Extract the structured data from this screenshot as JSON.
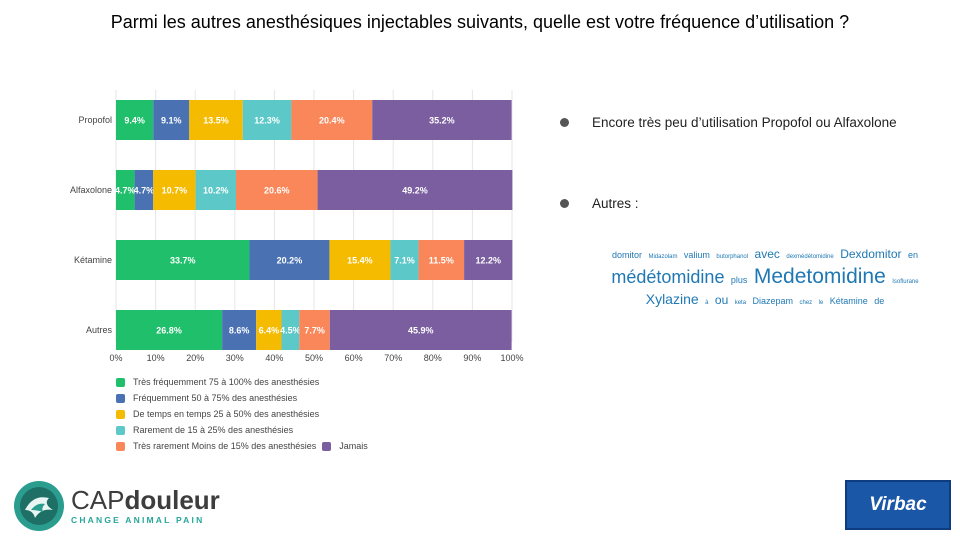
{
  "title": "Parmi les autres anesthésiques injectables suivants, quelle est votre fréquence d’utilisation ?",
  "chart_data": {
    "type": "bar",
    "orientation": "horizontal-stacked-100",
    "categories": [
      "Propofol",
      "Alfaxolone",
      "Kétamine",
      "Autres"
    ],
    "series": [
      {
        "name": "Très fréquemment 75 à 100% des anesthésies",
        "color": "#1fbf6b",
        "values": [
          9.4,
          4.7,
          33.7,
          26.8
        ]
      },
      {
        "name": "Fréquemment 50 à 75% des anesthésies",
        "color": "#4a72b3",
        "values": [
          9.1,
          4.7,
          20.2,
          8.6
        ]
      },
      {
        "name": "De temps en temps 25 à 50% des anesthésies",
        "color": "#f5bb00",
        "values": [
          13.5,
          10.7,
          15.4,
          6.4
        ]
      },
      {
        "name": "Rarement de 15 à 25% des anesthésies",
        "color": "#5dc8c8",
        "values": [
          12.3,
          10.2,
          7.1,
          4.5
        ]
      },
      {
        "name": "Très rarement Moins de 15% des anesthésies",
        "color": "#f9875a",
        "values": [
          20.4,
          20.6,
          11.5,
          7.7
        ]
      },
      {
        "name": "Jamais",
        "color": "#7b5ea0",
        "values": [
          35.2,
          49.2,
          12.2,
          45.9
        ]
      }
    ],
    "data_labels": [
      [
        "9.4%",
        "9.1%",
        "13.5%",
        "12.3%",
        "20.4%",
        "35.2%"
      ],
      [
        "4.7%",
        "4.7%",
        "10.7%",
        "10.2%",
        "20.6%",
        "49.2%"
      ],
      [
        "33.7%",
        "20.2%",
        "15.4%",
        "7.1%",
        "11.5%",
        "12.2%"
      ],
      [
        "26.8%",
        "8.6%",
        "6.4%",
        "4.5%",
        "7.7%",
        "45.9%"
      ]
    ],
    "x_ticks": [
      "0%",
      "10%",
      "20%",
      "30%",
      "40%",
      "50%",
      "60%",
      "70%",
      "80%",
      "90%",
      "100%"
    ],
    "xlim": [
      0,
      100
    ],
    "grid": true,
    "legend_position": "bottom-left"
  },
  "bullets": [
    "Encore très peu d’utilisation Propofol ou Alfaxolone",
    "Autres :"
  ],
  "wordcloud": [
    {
      "word": "domitor",
      "size": 9
    },
    {
      "word": "Midazolam",
      "size": 6
    },
    {
      "word": "valium",
      "size": 9
    },
    {
      "word": "butorphanol",
      "size": 6
    },
    {
      "word": "avec",
      "size": 12
    },
    {
      "word": "dexmédétomidine",
      "size": 6
    },
    {
      "word": "Dexdomitor",
      "size": 12
    },
    {
      "word": "en",
      "size": 9
    },
    {
      "word": "médétomidine",
      "size": 18
    },
    {
      "word": "plus",
      "size": 9
    },
    {
      "word": "Medetomidine",
      "size": 21
    },
    {
      "word": "Isoflurane",
      "size": 6
    },
    {
      "word": "Xylazine",
      "size": 14
    },
    {
      "word": "à",
      "size": 6
    },
    {
      "word": "ou",
      "size": 12
    },
    {
      "word": "keta",
      "size": 6
    },
    {
      "word": "Diazepam",
      "size": 9
    },
    {
      "word": "chez",
      "size": 6
    },
    {
      "word": "le",
      "size": 6
    },
    {
      "word": "Kétamine",
      "size": 9
    },
    {
      "word": "de",
      "size": 9
    }
  ],
  "logos": {
    "cap_main_light": "CAP",
    "cap_main_bold": "douleur",
    "cap_sub": "CHANGE ANIMAL PAIN",
    "virbac": "Virbac"
  }
}
